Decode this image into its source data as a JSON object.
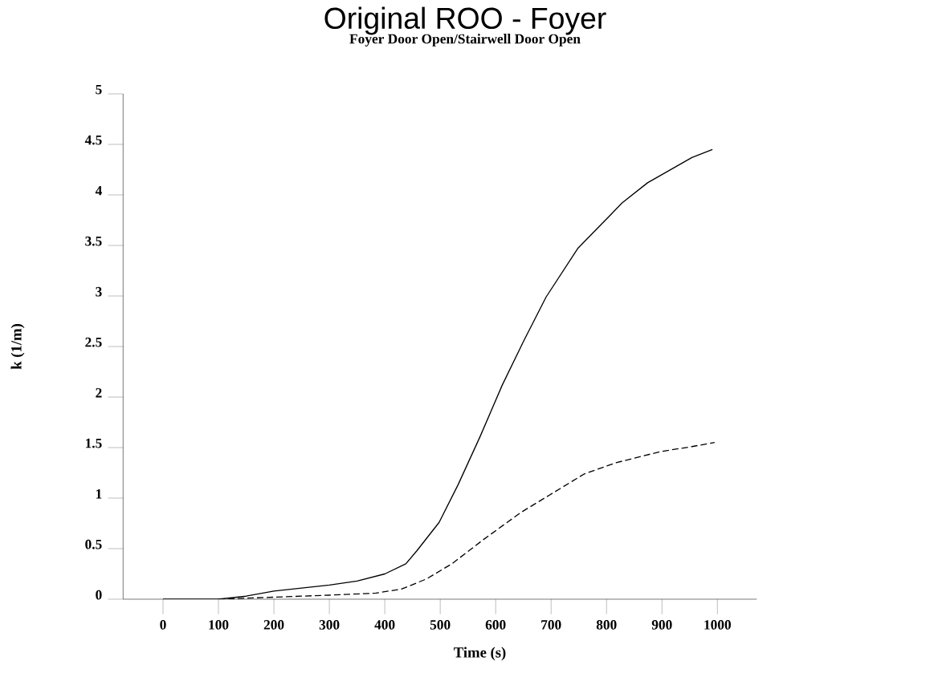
{
  "chart_data": {
    "type": "line",
    "title": "Original ROO - Foyer",
    "subtitle": "Foyer Door Open/Stairwell Door Open",
    "xlabel": "Time (s)",
    "ylabel": "k (1/m)",
    "xlim": [
      -72,
      1071
    ],
    "xticks": [
      0,
      100,
      200,
      300,
      400,
      500,
      600,
      700,
      800,
      900,
      1000
    ],
    "ylim": [
      0,
      5
    ],
    "yticks": [
      0,
      0.5,
      1,
      1.5,
      2,
      2.5,
      3,
      3.5,
      4,
      4.5,
      5
    ],
    "grid": false,
    "marker": "none",
    "series": [
      {
        "color": "#000000",
        "line_style": "solid",
        "x": [
          0,
          100,
          150,
          200,
          250,
          300,
          350,
          400,
          438,
          458,
          498,
          532,
          572,
          612,
          651,
          691,
          748,
          828,
          874,
          954,
          991
        ],
        "values": [
          0,
          0,
          0.03,
          0.08,
          0.11,
          0.14,
          0.18,
          0.25,
          0.35,
          0.48,
          0.76,
          1.13,
          1.61,
          2.12,
          2.56,
          2.99,
          3.47,
          3.92,
          4.12,
          4.37,
          4.45
        ]
      },
      {
        "color": "#000000",
        "line_style": "dashed",
        "x": [
          100,
          200,
          300,
          384,
          430,
          475,
          521,
          578,
          646,
          697,
          760,
          817,
          897,
          954,
          995
        ],
        "values": [
          0,
          0.02,
          0.04,
          0.06,
          0.1,
          0.2,
          0.35,
          0.59,
          0.86,
          1.03,
          1.24,
          1.35,
          1.46,
          1.51,
          1.55
        ]
      }
    ]
  }
}
